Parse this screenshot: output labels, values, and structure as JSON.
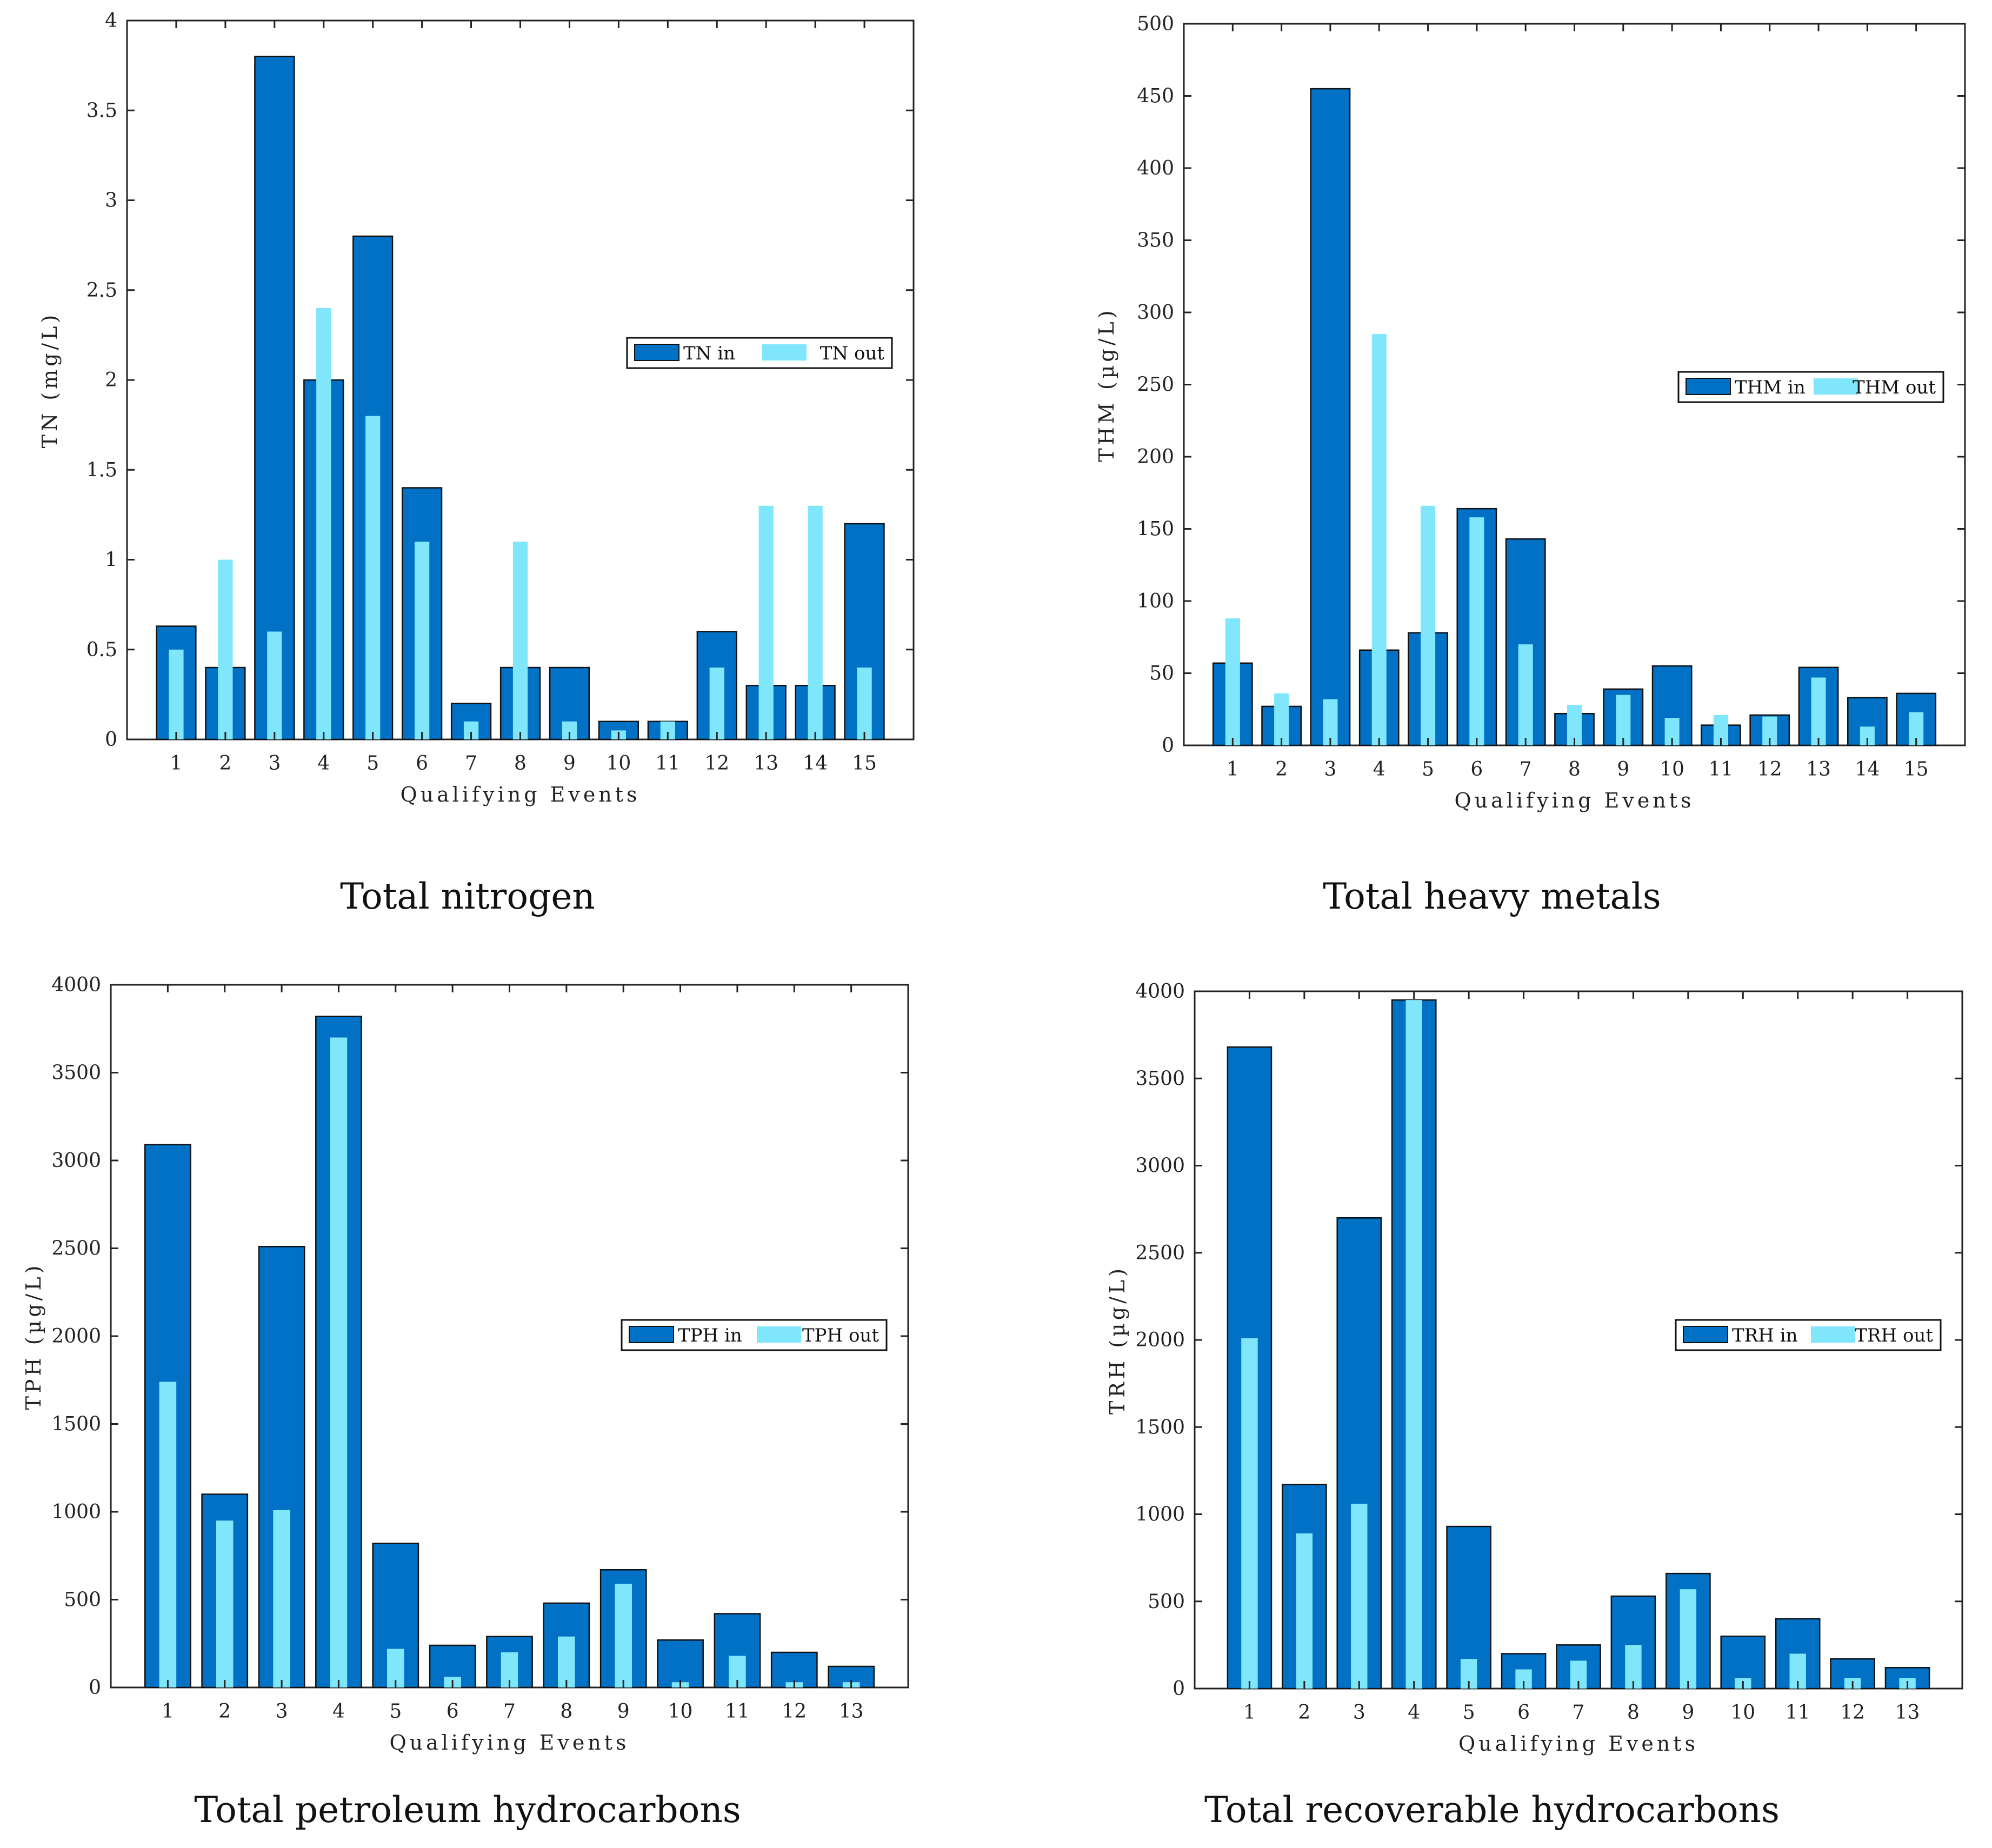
{
  "colors": {
    "in_fill": "#0071c5",
    "out_fill": "#7fe6fb",
    "axis": "#222222"
  },
  "chart_data": [
    {
      "type": "bar",
      "caption": "Total nitrogen",
      "xlabel": "Qualifying Events",
      "ylabel": "TN (mg/L)",
      "ylim": [
        0,
        4
      ],
      "yticks": [
        0,
        0.5,
        1,
        1.5,
        2,
        2.5,
        3,
        3.5,
        4
      ],
      "ytick_labels": [
        "0",
        "0.5",
        "1",
        "1.5",
        "2",
        "2.5",
        "3",
        "3.5",
        "4"
      ],
      "categories": [
        "1",
        "2",
        "3",
        "4",
        "5",
        "6",
        "7",
        "8",
        "9",
        "10",
        "11",
        "12",
        "13",
        "14",
        "15"
      ],
      "series": [
        {
          "name": "TN in",
          "values": [
            0.63,
            0.4,
            3.8,
            2.0,
            2.8,
            1.4,
            0.2,
            0.4,
            0.4,
            0.1,
            0.1,
            0.6,
            0.3,
            0.3,
            1.2
          ]
        },
        {
          "name": "TN out",
          "values": [
            0.5,
            1.0,
            0.6,
            2.4,
            1.8,
            1.1,
            0.1,
            1.1,
            0.1,
            0.05,
            0.1,
            0.4,
            1.3,
            1.3,
            0.4
          ]
        }
      ],
      "legend": "center-right"
    },
    {
      "type": "bar",
      "caption": "Total heavy metals",
      "xlabel": "Qualifying Events",
      "ylabel": "THM (µg/L)",
      "ylim": [
        0,
        500
      ],
      "yticks": [
        0,
        50,
        100,
        150,
        200,
        250,
        300,
        350,
        400,
        450,
        500
      ],
      "ytick_labels": [
        "0",
        "50",
        "100",
        "150",
        "200",
        "250",
        "300",
        "350",
        "400",
        "450",
        "500"
      ],
      "categories": [
        "1",
        "2",
        "3",
        "4",
        "5",
        "6",
        "7",
        "8",
        "9",
        "10",
        "11",
        "12",
        "13",
        "14",
        "15"
      ],
      "series": [
        {
          "name": "THM in",
          "values": [
            57,
            27,
            455,
            66,
            78,
            164,
            143,
            22,
            39,
            55,
            14,
            21,
            54,
            33,
            36
          ]
        },
        {
          "name": "THM out",
          "values": [
            88,
            36,
            32,
            285,
            166,
            158,
            70,
            28,
            35,
            19,
            21,
            20,
            47,
            13,
            23
          ]
        }
      ],
      "legend": "center-right"
    },
    {
      "type": "bar",
      "caption": "Total petroleum hydrocarbons",
      "xlabel": "Qualifying Events",
      "ylabel": "TPH (µg/L)",
      "ylim": [
        0,
        4000
      ],
      "yticks": [
        0,
        500,
        1000,
        1500,
        2000,
        2500,
        3000,
        3500,
        4000
      ],
      "ytick_labels": [
        "0",
        "500",
        "1000",
        "1500",
        "2000",
        "2500",
        "3000",
        "3500",
        "4000"
      ],
      "categories": [
        "1",
        "2",
        "3",
        "4",
        "5",
        "6",
        "7",
        "8",
        "9",
        "10",
        "11",
        "12",
        "13"
      ],
      "series": [
        {
          "name": "TPH in",
          "values": [
            3090,
            1100,
            2510,
            3820,
            820,
            240,
            290,
            480,
            670,
            270,
            420,
            200,
            120
          ]
        },
        {
          "name": "TPH out",
          "values": [
            1740,
            950,
            1010,
            3700,
            220,
            60,
            200,
            290,
            590,
            30,
            180,
            30,
            30
          ]
        }
      ],
      "legend": "center-right"
    },
    {
      "type": "bar",
      "caption": "Total recoverable hydrocarbons",
      "xlabel": "Qualifying Events",
      "ylabel": "TRH (µg/L)",
      "ylim": [
        0,
        4000
      ],
      "yticks": [
        0,
        500,
        1000,
        1500,
        2000,
        2500,
        3000,
        3500,
        4000
      ],
      "ytick_labels": [
        "0",
        "500",
        "1000",
        "1500",
        "2000",
        "2500",
        "3000",
        "3500",
        "4000"
      ],
      "categories": [
        "1",
        "2",
        "3",
        "4",
        "5",
        "6",
        "7",
        "8",
        "9",
        "10",
        "11",
        "12",
        "13"
      ],
      "series": [
        {
          "name": "TRH in",
          "values": [
            3680,
            1170,
            2700,
            3950,
            930,
            200,
            250,
            530,
            660,
            300,
            400,
            170,
            120
          ]
        },
        {
          "name": "TRH out",
          "values": [
            2010,
            890,
            1060,
            3950,
            170,
            110,
            160,
            250,
            570,
            60,
            200,
            60,
            60
          ]
        }
      ],
      "legend": "center-right"
    }
  ]
}
